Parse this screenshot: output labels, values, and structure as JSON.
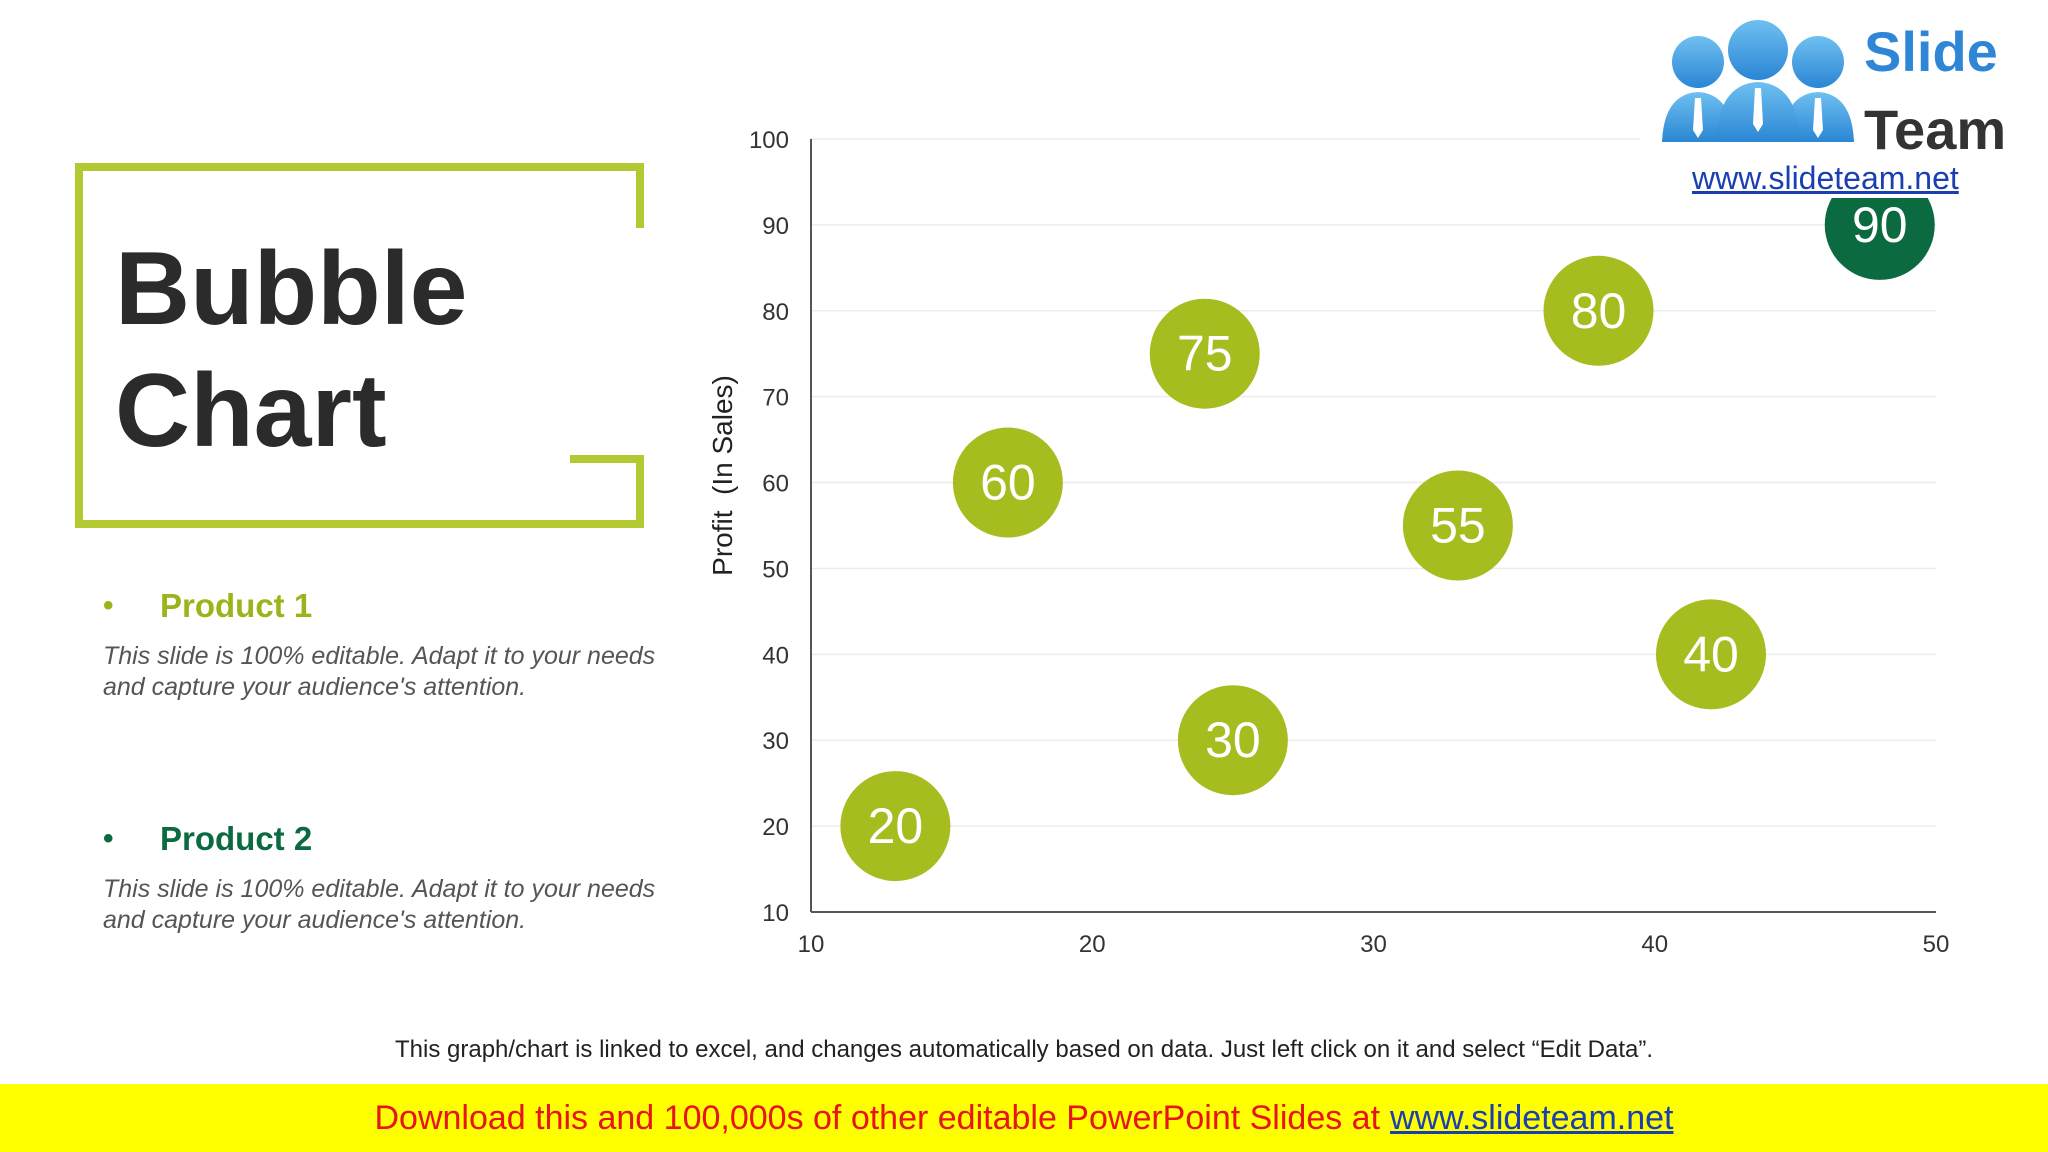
{
  "title": {
    "line1": "Bubble",
    "line2": "Chart"
  },
  "products": [
    {
      "bullet": "•",
      "name": "Product 1",
      "description": "This slide is 100% editable. Adapt it to your needs and capture your audience's attention."
    },
    {
      "bullet": "•",
      "name": "Product 2",
      "description": "This slide is 100% editable. Adapt it to your needs and capture your audience's attention."
    }
  ],
  "colors": {
    "accent_lime": "#a7bd1f",
    "frame": "#b4c832",
    "product1": "#9cb41c",
    "product2": "#0c6a41",
    "title_text": "#2b2b2b",
    "banner_text": "#e8141b",
    "link": "#1a3fb0",
    "logo_word": "#2f86d6"
  },
  "chart_data": {
    "type": "bubble",
    "title": "",
    "xlabel": "",
    "ylabel": "Profit  (In Sales)",
    "xlim": [
      10,
      50
    ],
    "ylim": [
      10,
      100
    ],
    "x_ticks": [
      10,
      20,
      30,
      40,
      50
    ],
    "y_ticks": [
      10,
      20,
      30,
      40,
      50,
      60,
      70,
      80,
      90,
      100
    ],
    "grid": true,
    "legend": "none",
    "points": [
      {
        "x": 13,
        "y": 20,
        "label": "20",
        "series": "product1"
      },
      {
        "x": 17,
        "y": 60,
        "label": "60",
        "series": "product1"
      },
      {
        "x": 24,
        "y": 75,
        "label": "75",
        "series": "product1"
      },
      {
        "x": 25,
        "y": 30,
        "label": "30",
        "series": "product1"
      },
      {
        "x": 33,
        "y": 55,
        "label": "55",
        "series": "product1"
      },
      {
        "x": 38,
        "y": 80,
        "label": "80",
        "series": "product1"
      },
      {
        "x": 42,
        "y": 40,
        "label": "40",
        "series": "product1"
      },
      {
        "x": 48,
        "y": 90,
        "label": "90",
        "series": "product2"
      }
    ]
  },
  "footnote": "This graph/chart is linked to excel, and changes automatically based on data. Just left click on it and select “Edit Data”.",
  "banner": {
    "text": "Download this and 100,000s of other editable PowerPoint Slides at",
    "link": "www.slideteam.net"
  },
  "logo": {
    "word1": "Slide",
    "word2": "Team",
    "url": "www.slideteam.net",
    "icon": "people-group-icon"
  }
}
